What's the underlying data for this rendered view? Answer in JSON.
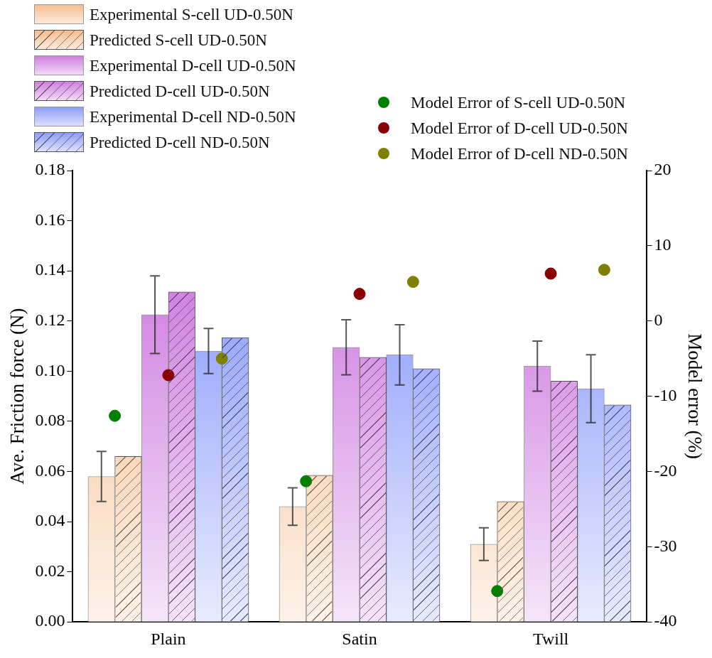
{
  "chart_data": {
    "type": "bar",
    "ylabel": "Ave. Friction force (N)",
    "y2label": "Model error (%)",
    "categories": [
      "Plain",
      "Satin",
      "Twill"
    ],
    "series": [
      {
        "name": "Experimental S-cell UD-0.50N",
        "color": "#f5bd8e",
        "values": [
          0.058,
          0.046,
          0.031
        ],
        "errors": [
          0.01,
          0.0075,
          0.0065
        ]
      },
      {
        "name": "Predicted S-cell UD-0.50N",
        "color": "#f5bd8e",
        "values": [
          0.066,
          0.0585,
          0.048
        ]
      },
      {
        "name": "Experimental D-cell UD-0.50N",
        "color": "#cf7fe0",
        "values": [
          0.1225,
          0.1095,
          0.102
        ],
        "errors": [
          0.0155,
          0.011,
          0.01
        ]
      },
      {
        "name": "Predicted D-cell UD-0.50N",
        "color": "#cf7fe0",
        "values": [
          0.1316,
          0.1055,
          0.096
        ]
      },
      {
        "name": "Experimental D-cell ND-0.50N",
        "color": "#8c9cfb",
        "values": [
          0.108,
          0.1065,
          0.093
        ],
        "errors": [
          0.009,
          0.012,
          0.0135
        ]
      },
      {
        "name": "Predicted D-cell ND-0.50N",
        "color": "#8c9cfb",
        "values": [
          0.1134,
          0.101,
          0.0865
        ]
      },
      {
        "name": "Model Error of S-cell UD-0.50N",
        "type": "scatter",
        "axis": "y2",
        "color": "#008000",
        "x": [
          "Plain",
          "Satin",
          "Twill"
        ],
        "values": [
          -12.6,
          -21.3,
          -35.9
        ]
      },
      {
        "name": "Model Error of D-cell UD-0.50N",
        "type": "scatter",
        "axis": "y2",
        "color": "#8b0000",
        "x": [
          "Plain",
          "Satin",
          "Twill"
        ],
        "values": [
          -7.2,
          3.6,
          6.3
        ]
      },
      {
        "name": "Model Error of D-cell ND-0.50N",
        "type": "scatter",
        "axis": "y2",
        "color": "#808000",
        "x": [
          "Plain",
          "Satin",
          "Twill"
        ],
        "values": [
          -5.0,
          5.2,
          6.8
        ]
      }
    ],
    "ylim": [
      0,
      0.18
    ],
    "yticks": [
      {
        "value": 0,
        "label": "0.00"
      },
      {
        "value": 0.02,
        "label": "0.02"
      },
      {
        "value": 0.04,
        "label": "0.04"
      },
      {
        "value": 0.06,
        "label": "0.06"
      },
      {
        "value": 0.08,
        "label": "0.08"
      },
      {
        "value": 0.1,
        "label": "0.10"
      },
      {
        "value": 0.12,
        "label": "0.12"
      },
      {
        "value": 0.14,
        "label": "0.14"
      },
      {
        "value": 0.16,
        "label": "0.16"
      },
      {
        "value": 0.18,
        "label": "0.18"
      }
    ],
    "y2lim": [
      -40,
      20
    ],
    "y2ticks": [
      -40,
      -30,
      -20,
      -10,
      0,
      10,
      20
    ],
    "legend": "top",
    "marker": "circle",
    "grid": false
  }
}
